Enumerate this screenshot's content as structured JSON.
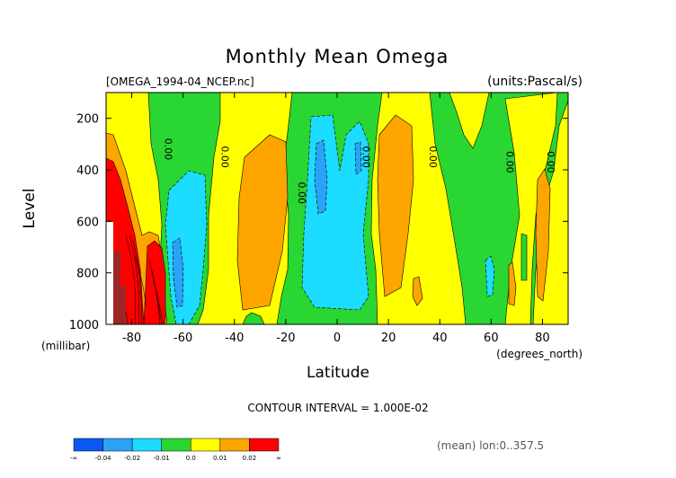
{
  "chart_data": {
    "type": "contour",
    "title": "Monthly Mean Omega",
    "file_label": "[OMEGA_1994-04_NCEP.nc]",
    "units_label": "(units:Pascal/s)",
    "ylabel": "Level",
    "yunits": "(millibar)",
    "xlabel": "Latitude",
    "xunits": "(degrees_north)",
    "x_ticks": [
      "-80",
      "-60",
      "-40",
      "-20",
      "0",
      "20",
      "40",
      "60",
      "80"
    ],
    "x_tick_values": [
      -80,
      -60,
      -40,
      -20,
      0,
      20,
      40,
      60,
      80
    ],
    "y_ticks": [
      "200",
      "400",
      "600",
      "800",
      "1000"
    ],
    "y_tick_values": [
      200,
      400,
      600,
      800,
      1000
    ],
    "xlim": [
      -90,
      90
    ],
    "ylim": [
      100,
      1000
    ],
    "y_reversed": true,
    "contour_interval_text": "CONTOUR INTERVAL = 1.000E-02",
    "zero_labels": [
      {
        "text": "0.00",
        "lat": -67,
        "level": 320
      },
      {
        "text": "0.00",
        "lat": -45,
        "level": 350
      },
      {
        "text": "0.00",
        "lat": -15,
        "level": 490
      },
      {
        "text": "0.00",
        "lat": 10,
        "level": 350
      },
      {
        "text": "0.00",
        "lat": 36,
        "level": 350
      },
      {
        "text": "0.00",
        "lat": 66,
        "level": 370
      },
      {
        "text": "0.00",
        "lat": 82,
        "level": 370
      }
    ],
    "colorbar": {
      "colors": [
        "#0a58f2",
        "#2aa2f8",
        "#1cdcff",
        "#2ad632",
        "#ffff00",
        "#ffa500",
        "#ff0000"
      ],
      "labels": [
        "-∞",
        "-0.04",
        "-0.02",
        "-0.01",
        "0.0",
        "0.01",
        "0.02",
        "∞"
      ]
    },
    "footer_note": "(mean) lon:0..357.5",
    "legend_placement": "bottom-left"
  }
}
